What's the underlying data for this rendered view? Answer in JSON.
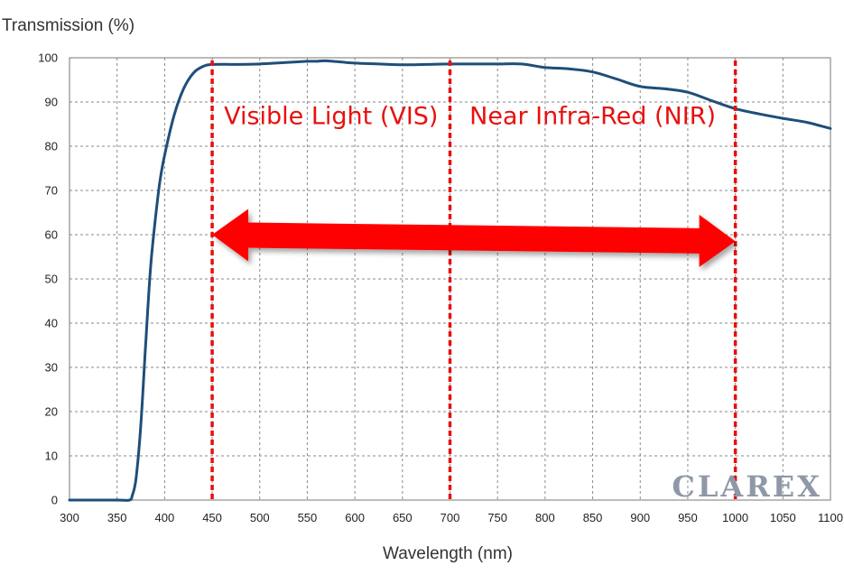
{
  "chart_data": {
    "type": "line",
    "title": "",
    "xlabel": "Wavelength (nm)",
    "ylabel": "Transmission (%)",
    "xlim": [
      300,
      1100
    ],
    "ylim": [
      0,
      100
    ],
    "xticks": [
      300,
      350,
      400,
      450,
      500,
      550,
      600,
      650,
      700,
      750,
      800,
      850,
      900,
      950,
      1000,
      1050,
      1100
    ],
    "yticks": [
      0,
      10,
      20,
      30,
      40,
      50,
      60,
      70,
      80,
      90,
      100
    ],
    "grid": true,
    "series": [
      {
        "color": "#1f4e79",
        "x": [
          300,
          350,
          363,
          366,
          370,
          375,
          380,
          385,
          390,
          395,
          400,
          410,
          420,
          430,
          440,
          450,
          475,
          500,
          525,
          550,
          560,
          570,
          600,
          625,
          650,
          675,
          700,
          725,
          750,
          775,
          800,
          825,
          850,
          875,
          900,
          925,
          950,
          975,
          1000,
          1025,
          1050,
          1075,
          1100
        ],
        "y": [
          0,
          0,
          0,
          1,
          5,
          17,
          35,
          52,
          63,
          72,
          78,
          87,
          93,
          96.5,
          98,
          98.5,
          98.5,
          98.6,
          98.9,
          99.2,
          99.2,
          99.3,
          98.8,
          98.6,
          98.4,
          98.5,
          98.6,
          98.6,
          98.6,
          98.6,
          97.8,
          97.5,
          96.8,
          95.2,
          93.5,
          93.0,
          92.2,
          90.3,
          88.5,
          87.3,
          86.3,
          85.4,
          84.0
        ]
      }
    ],
    "annotations": {
      "vlines": [
        450,
        700,
        1000
      ],
      "vline_color": "#e8100e",
      "region_labels": [
        {
          "text": "Visible Light (VIS)",
          "x_from": 450,
          "x_to": 700,
          "y": 85
        },
        {
          "text": "Near Infra-Red (NIR)",
          "x_from": 700,
          "x_to": 1000,
          "y": 85
        }
      ],
      "arrow": {
        "from": 450,
        "to": 1000,
        "y_start": 60,
        "y_end": 58.5,
        "color": "#ff0000"
      }
    }
  },
  "brand": {
    "text": "CLAREX",
    "color": "#8f98a6"
  }
}
